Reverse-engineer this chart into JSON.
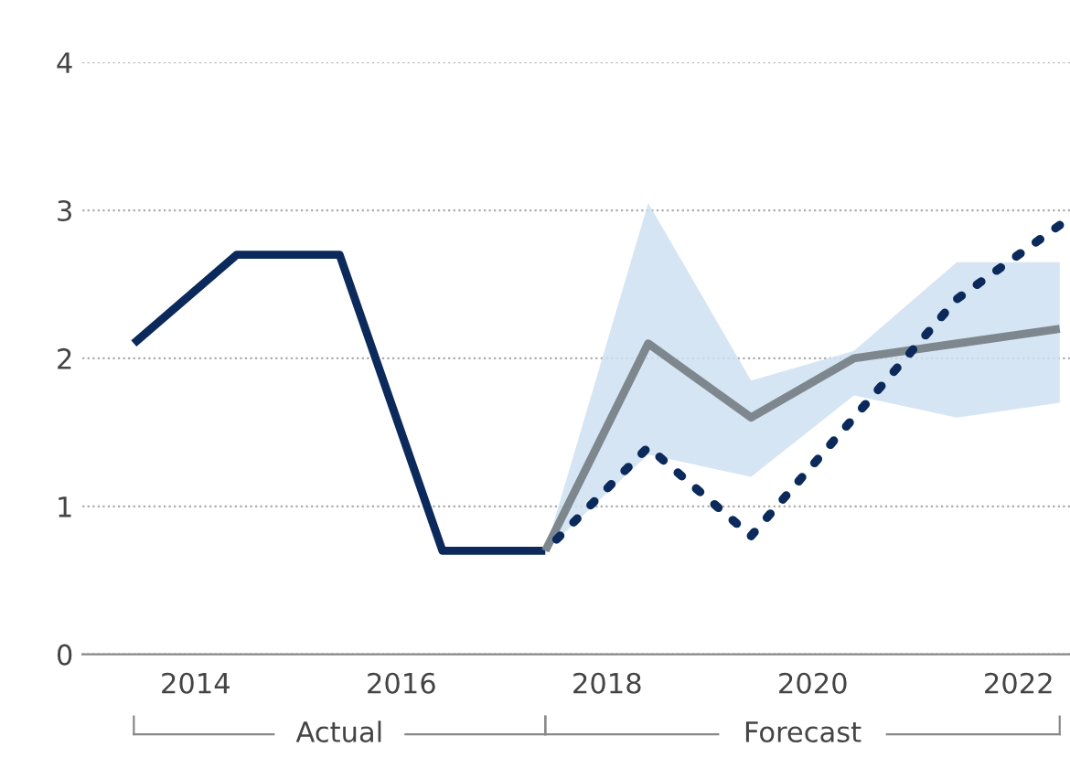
{
  "chart_data": {
    "type": "line",
    "series": [
      {
        "color": "#0b2a5b",
        "line_style": "solid",
        "x": [
          2013.4,
          2014.4,
          2015.4,
          2016.4,
          2017.4
        ],
        "values": [
          2.1,
          2.7,
          2.7,
          0.7,
          0.7
        ]
      },
      {
        "color": "#7d878d",
        "line_style": "solid",
        "x": [
          2017.4,
          2018.4,
          2019.4,
          2020.4,
          2021.4,
          2022.4
        ],
        "values": [
          0.7,
          2.1,
          1.6,
          2.0,
          2.1,
          2.2
        ],
        "lower": [
          0.7,
          1.35,
          1.2,
          1.75,
          1.6,
          1.7
        ],
        "upper": [
          0.7,
          3.05,
          1.85,
          2.05,
          2.65,
          2.65
        ]
      },
      {
        "color": "#0b2a5b",
        "line_style": "dotted",
        "x": [
          2017.4,
          2018.4,
          2019.4,
          2020.4,
          2021.4,
          2022.4
        ],
        "values": [
          0.7,
          1.4,
          0.8,
          1.6,
          2.4,
          2.9
        ]
      }
    ],
    "xlim": [
      2012.9,
      2022.5
    ],
    "xticks": [
      2014,
      2016,
      2018,
      2020,
      2022
    ],
    "ylim": [
      0,
      4
    ],
    "yticks": [
      0,
      1,
      2,
      3,
      4
    ],
    "grid": "y",
    "legend": false,
    "annotations": [
      "Actual",
      "Forecast"
    ]
  }
}
